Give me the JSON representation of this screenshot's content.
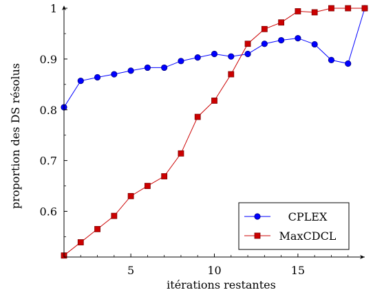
{
  "chart_data": {
    "type": "line",
    "xlabel": "itérations restantes",
    "ylabel": "proportion des DS résolus",
    "xlim": [
      1,
      19
    ],
    "ylim": [
      0.51,
      1.0
    ],
    "xticks": [
      5,
      10,
      15
    ],
    "xtick_labels": [
      "5",
      "10",
      "15"
    ],
    "yticks": [
      0.6,
      0.7,
      0.8,
      0.9,
      1.0
    ],
    "ytick_labels": [
      "0.6",
      "0.7",
      "0.8",
      "0.9",
      "1"
    ],
    "legend_position": "bottom-right",
    "grid": false,
    "x": [
      1,
      2,
      3,
      4,
      5,
      6,
      7,
      8,
      9,
      10,
      11,
      12,
      13,
      14,
      15,
      16,
      17,
      18,
      19
    ],
    "series": [
      {
        "name": "CPLEX",
        "color": "#0000ff",
        "marker": "circle",
        "values": [
          0.805,
          0.857,
          0.864,
          0.87,
          0.877,
          0.883,
          0.883,
          0.896,
          0.903,
          0.91,
          0.905,
          0.91,
          0.93,
          0.937,
          0.941,
          0.929,
          0.898,
          0.891,
          1.0
        ]
      },
      {
        "name": "MaxCDCL",
        "color": "#cc0000",
        "marker": "square",
        "values": [
          0.513,
          0.539,
          0.565,
          0.591,
          0.63,
          0.65,
          0.669,
          0.714,
          0.786,
          0.818,
          0.87,
          0.93,
          0.959,
          0.972,
          0.994,
          0.992,
          1.0,
          1.0,
          1.0
        ]
      }
    ]
  }
}
